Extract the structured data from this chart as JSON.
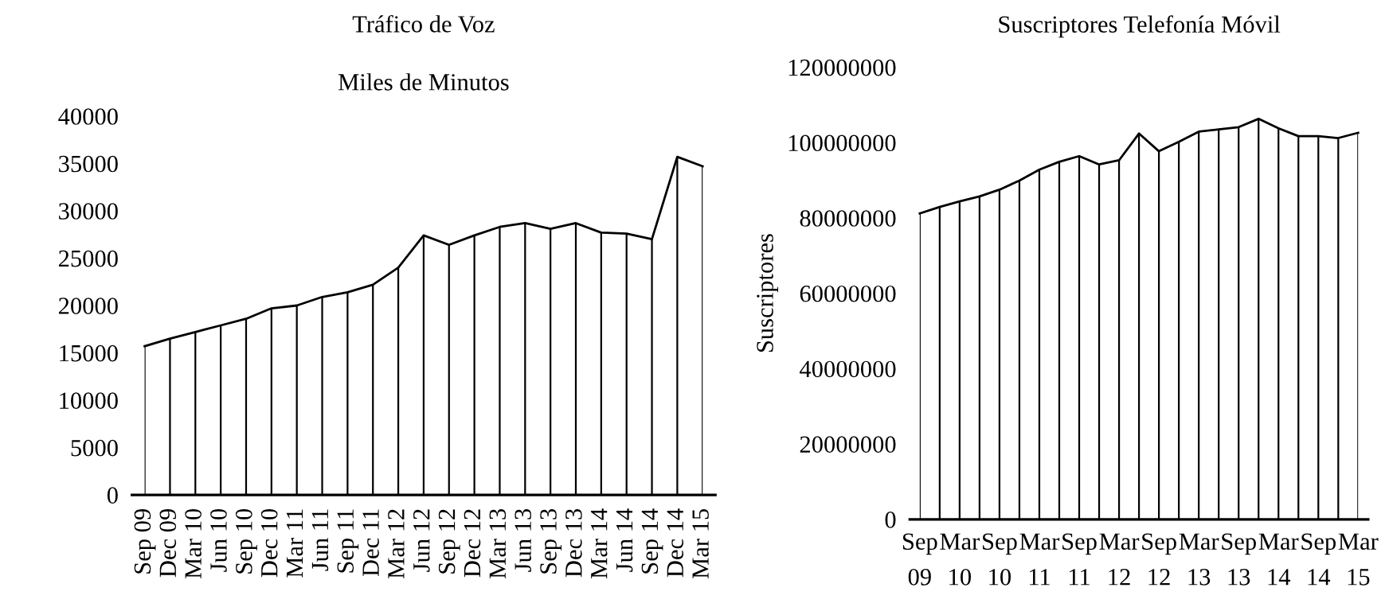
{
  "chart_data": [
    {
      "type": "area",
      "title": "Tráfico de Voz",
      "subtitle": "Miles de Minutos",
      "categories": [
        "Sep 09",
        "Dec 09",
        "Mar 10",
        "Jun 10",
        "Sep 10",
        "Dec 10",
        "Mar 11",
        "Jun 11",
        "Sep 11",
        "Dec 11",
        "Mar 12",
        "Jun 12",
        "Sep 12",
        "Dec 12",
        "Mar 13",
        "Jun 13",
        "Sep 13",
        "Dec 13",
        "Mar 14",
        "Jun 14",
        "Sep 14",
        "Dec 14",
        "Mar 15"
      ],
      "series": [
        {
          "color": "#000000",
          "values": [
            15700,
            16500,
            17200,
            17900,
            18600,
            19700,
            20000,
            20900,
            21400,
            22200,
            24000,
            27400,
            26400,
            27400,
            28300,
            28700,
            28100,
            28700,
            27700,
            27600,
            27000,
            35700,
            34700
          ]
        }
      ],
      "ylim": [
        0,
        40000
      ],
      "yticks": [
        0,
        5000,
        10000,
        15000,
        20000,
        25000,
        30000,
        35000,
        40000
      ],
      "grid": "x",
      "legend": false
    },
    {
      "type": "area",
      "title": "Suscriptores Telefonía Móvil",
      "ylabel": "Suscriptores",
      "categories": [
        "Sep\n09",
        null,
        "Mar\n10",
        null,
        "Sep\n10",
        null,
        "Mar\n11",
        null,
        "Sep\n11",
        null,
        "Mar\n12",
        null,
        "Sep\n12",
        null,
        "Mar\n13",
        null,
        "Sep\n13",
        null,
        "Mar\n14",
        null,
        "Sep\n14",
        null,
        "Mar\n15"
      ],
      "series": [
        {
          "color": "#000000",
          "values": [
            81200000,
            82900000,
            84400000,
            85700000,
            87500000,
            89900000,
            92800000,
            94900000,
            96400000,
            94200000,
            95300000,
            102400000,
            97700000,
            100200000,
            102900000,
            103500000,
            104100000,
            106300000,
            103800000,
            101700000,
            101700000,
            101200000,
            102600000
          ]
        }
      ],
      "ylim": [
        0,
        120000000
      ],
      "yticks": [
        0,
        20000000,
        40000000,
        60000000,
        80000000,
        100000000,
        120000000
      ],
      "grid": "x",
      "legend": false
    }
  ]
}
